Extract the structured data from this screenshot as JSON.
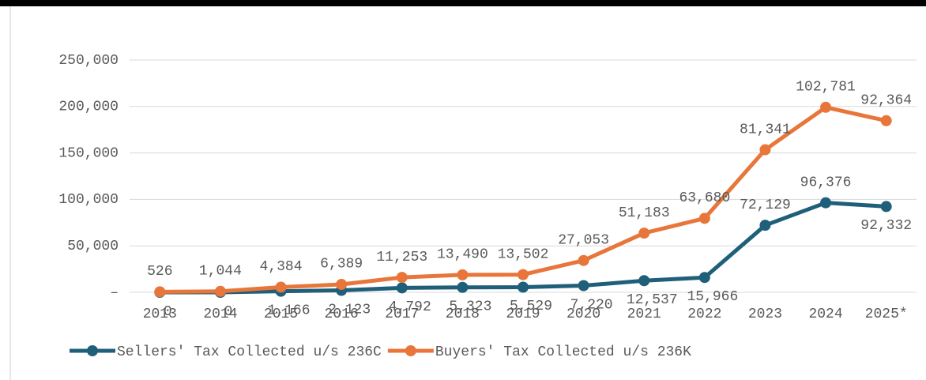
{
  "chart_data": {
    "type": "line",
    "stacked": true,
    "categories": [
      "2013",
      "2014",
      "2015",
      "2016",
      "2017",
      "2018",
      "2019",
      "2020",
      "2021",
      "2022",
      "2023",
      "2024",
      "2025*"
    ],
    "series": [
      {
        "name": "Sellers' Tax Collected u/s 236C",
        "color": "#1f5f7a",
        "values": [
          0,
          0,
          1166,
          2123,
          4792,
          5323,
          5529,
          7220,
          12537,
          15966,
          72129,
          96376,
          92332
        ],
        "value_labels": [
          "0",
          "0",
          "1,166",
          "2,123",
          "4,792",
          "5,323",
          "5,529",
          "7,220",
          "12,537",
          "15,966",
          "72,129",
          "96,376",
          "92,332"
        ]
      },
      {
        "name": "Buyers' Tax Collected u/s 236K",
        "color": "#e8763a",
        "values": [
          526,
          1044,
          4384,
          6389,
          11253,
          13490,
          13502,
          27053,
          51183,
          63680,
          81341,
          102781,
          92364
        ],
        "value_labels": [
          "526",
          "1,044",
          "4,384",
          "6,389",
          "11,253",
          "13,490",
          "13,502",
          "27,053",
          "51,183",
          "63,680",
          "81,341",
          "102,781",
          "92,364"
        ]
      }
    ],
    "ylim": [
      0,
      250000
    ],
    "yticks": [
      {
        "value": 0,
        "label": "–"
      },
      {
        "value": 50000,
        "label": "50,000"
      },
      {
        "value": 100000,
        "label": "100,000"
      },
      {
        "value": 150000,
        "label": "150,000"
      },
      {
        "value": 200000,
        "label": "200,000"
      },
      {
        "value": 250000,
        "label": "250,000"
      }
    ],
    "grid": true,
    "legend": "bottom"
  }
}
